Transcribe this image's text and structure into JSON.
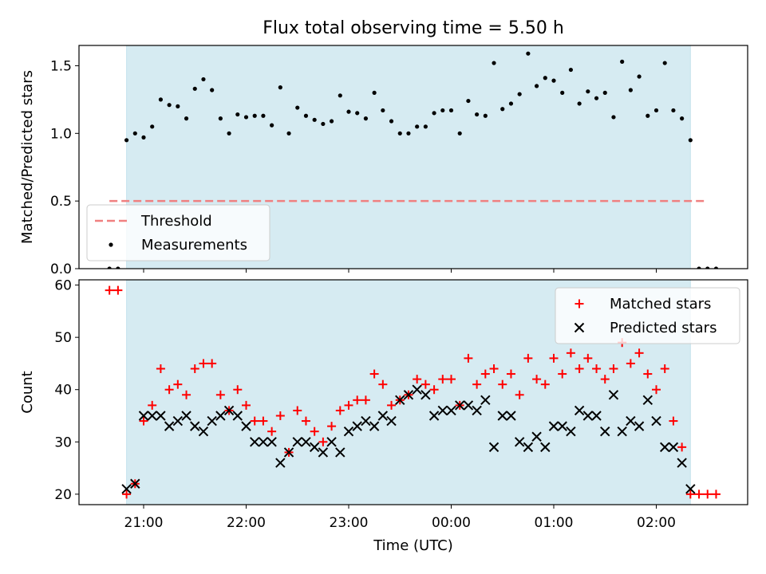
{
  "chart_data": {
    "title": "Flux total observing time = 5.50 h",
    "x_ticks": [
      "21:00",
      "22:00",
      "23:00",
      "00:00",
      "01:00",
      "02:00"
    ],
    "xlabel": "Time (UTC)",
    "observing_window": {
      "start": "20:50",
      "end": "02:20"
    },
    "panels": [
      {
        "type": "scatter",
        "ylabel": "Matched/Predicted stars",
        "ylim": [
          0,
          1.65
        ],
        "y_ticks": [
          "0.0",
          "0.5",
          "1.0",
          "1.5"
        ],
        "legend_location": "lower-left",
        "threshold": {
          "name": "Threshold",
          "value": 0.5,
          "x_start": "20:40",
          "x_end": "02:30",
          "color": "#f08080"
        },
        "series": [
          {
            "name": "Measurements",
            "marker": "dot",
            "color": "#000000",
            "x": [
              "20:40",
              "20:45",
              "20:50",
              "20:55",
              "21:00",
              "21:05",
              "21:10",
              "21:15",
              "21:20",
              "21:25",
              "21:30",
              "21:35",
              "21:40",
              "21:45",
              "21:50",
              "21:55",
              "22:00",
              "22:05",
              "22:10",
              "22:15",
              "22:20",
              "22:25",
              "22:30",
              "22:35",
              "22:40",
              "22:45",
              "22:50",
              "22:55",
              "23:00",
              "23:05",
              "23:10",
              "23:15",
              "23:20",
              "23:25",
              "23:30",
              "23:35",
              "23:40",
              "23:45",
              "23:50",
              "23:55",
              "00:00",
              "00:05",
              "00:10",
              "00:15",
              "00:20",
              "00:25",
              "00:30",
              "00:35",
              "00:40",
              "00:45",
              "00:50",
              "00:55",
              "01:00",
              "01:05",
              "01:10",
              "01:15",
              "01:20",
              "01:25",
              "01:30",
              "01:35",
              "01:40",
              "01:45",
              "01:50",
              "01:55",
              "02:00",
              "02:05",
              "02:10",
              "02:15",
              "02:20",
              "02:25",
              "02:30",
              "02:35"
            ],
            "y": [
              0.0,
              0.0,
              0.95,
              1.0,
              0.97,
              1.05,
              1.25,
              1.21,
              1.2,
              1.11,
              1.33,
              1.4,
              1.32,
              1.11,
              1.0,
              1.14,
              1.12,
              1.13,
              1.13,
              1.06,
              1.34,
              1.0,
              1.19,
              1.13,
              1.1,
              1.07,
              1.09,
              1.28,
              1.16,
              1.15,
              1.11,
              1.3,
              1.17,
              1.09,
              1.0,
              1.0,
              1.05,
              1.05,
              1.15,
              1.17,
              1.17,
              1.0,
              1.24,
              1.14,
              1.13,
              1.52,
              1.18,
              1.22,
              1.29,
              1.59,
              1.35,
              1.41,
              1.39,
              1.3,
              1.47,
              1.22,
              1.31,
              1.26,
              1.3,
              1.12,
              1.53,
              1.32,
              1.42,
              1.13,
              1.17,
              1.52,
              1.17,
              1.11,
              0.95,
              0.0,
              0.0,
              0.0
            ]
          }
        ]
      },
      {
        "type": "scatter",
        "ylabel": "Count",
        "ylim": [
          18,
          61
        ],
        "y_ticks": [
          "20",
          "30",
          "40",
          "50",
          "60"
        ],
        "legend_location": "upper-right",
        "series": [
          {
            "name": "Matched stars",
            "marker": "plus",
            "color": "#ff0000",
            "x": [
              "20:40",
              "20:45",
              "20:50",
              "20:55",
              "21:00",
              "21:05",
              "21:10",
              "21:15",
              "21:20",
              "21:25",
              "21:30",
              "21:35",
              "21:40",
              "21:45",
              "21:50",
              "21:55",
              "22:00",
              "22:05",
              "22:10",
              "22:15",
              "22:20",
              "22:25",
              "22:30",
              "22:35",
              "22:40",
              "22:45",
              "22:50",
              "22:55",
              "23:00",
              "23:05",
              "23:10",
              "23:15",
              "23:20",
              "23:25",
              "23:30",
              "23:35",
              "23:40",
              "23:45",
              "23:50",
              "23:55",
              "00:00",
              "00:05",
              "00:10",
              "00:15",
              "00:20",
              "00:25",
              "00:30",
              "00:35",
              "00:40",
              "00:45",
              "00:50",
              "00:55",
              "01:00",
              "01:05",
              "01:10",
              "01:15",
              "01:20",
              "01:25",
              "01:30",
              "01:35",
              "01:40",
              "01:45",
              "01:50",
              "01:55",
              "02:00",
              "02:05",
              "02:10",
              "02:15",
              "02:20",
              "02:25",
              "02:30",
              "02:35"
            ],
            "y": [
              59,
              59,
              20,
              22,
              34,
              37,
              44,
              40,
              41,
              39,
              44,
              45,
              45,
              39,
              36,
              40,
              37,
              34,
              34,
              32,
              35,
              28,
              36,
              34,
              32,
              30,
              33,
              36,
              37,
              38,
              38,
              43,
              41,
              37,
              38,
              39,
              42,
              41,
              40,
              42,
              42,
              37,
              46,
              41,
              43,
              44,
              41,
              43,
              39,
              46,
              42,
              41,
              46,
              43,
              47,
              44,
              46,
              44,
              42,
              44,
              49,
              45,
              47,
              43,
              40,
              44,
              34,
              29,
              20,
              20,
              20,
              20
            ]
          },
          {
            "name": "Predicted stars",
            "marker": "x",
            "color": "#000000",
            "x": [
              "20:50",
              "20:55",
              "21:00",
              "21:05",
              "21:10",
              "21:15",
              "21:20",
              "21:25",
              "21:30",
              "21:35",
              "21:40",
              "21:45",
              "21:50",
              "21:55",
              "22:00",
              "22:05",
              "22:10",
              "22:15",
              "22:20",
              "22:25",
              "22:30",
              "22:35",
              "22:40",
              "22:45",
              "22:50",
              "22:55",
              "23:00",
              "23:05",
              "23:10",
              "23:15",
              "23:20",
              "23:25",
              "23:30",
              "23:35",
              "23:40",
              "23:45",
              "23:50",
              "23:55",
              "00:00",
              "00:05",
              "00:10",
              "00:15",
              "00:20",
              "00:25",
              "00:30",
              "00:35",
              "00:40",
              "00:45",
              "00:50",
              "00:55",
              "01:00",
              "01:05",
              "01:10",
              "01:15",
              "01:20",
              "01:25",
              "01:30",
              "01:35",
              "01:40",
              "01:45",
              "01:50",
              "01:55",
              "02:00",
              "02:05",
              "02:10",
              "02:15",
              "02:20"
            ],
            "y": [
              21,
              22,
              35,
              35,
              35,
              33,
              34,
              35,
              33,
              32,
              34,
              35,
              36,
              35,
              33,
              30,
              30,
              30,
              26,
              28,
              30,
              30,
              29,
              28,
              30,
              28,
              32,
              33,
              34,
              33,
              35,
              34,
              38,
              39,
              40,
              39,
              35,
              36,
              36,
              37,
              37,
              36,
              38,
              29,
              35,
              35,
              30,
              29,
              31,
              29,
              33,
              33,
              32,
              36,
              35,
              35,
              32,
              39,
              32,
              34,
              33,
              38,
              34,
              29,
              29,
              26,
              21
            ]
          }
        ]
      }
    ]
  }
}
